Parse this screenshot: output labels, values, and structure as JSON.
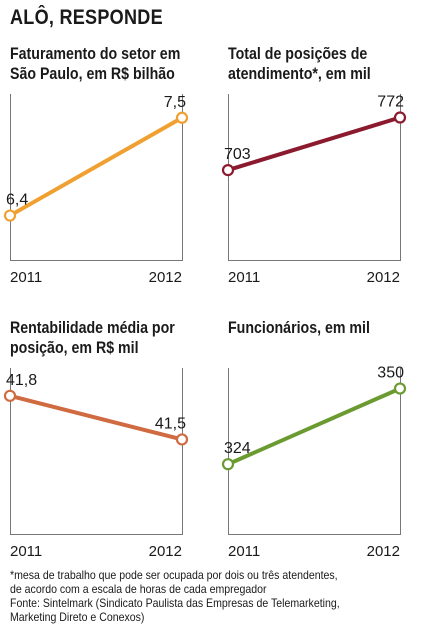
{
  "title": "ALÔ, RESPONDE",
  "chart_data": [
    {
      "type": "line",
      "title": "Faturamento do setor em\nSão Paulo, em R$ bilhão",
      "categories": [
        "2011",
        "2012"
      ],
      "values": [
        6.4,
        7.5
      ],
      "value_labels": [
        "6,4",
        "7,5"
      ],
      "ylim": [
        5.9,
        7.7
      ],
      "color": "#f0a030"
    },
    {
      "type": "line",
      "title": "Total de posições de\natendimento*, em mil",
      "categories": [
        "2011",
        "2012"
      ],
      "values": [
        703,
        772
      ],
      "value_labels": [
        "703",
        "772"
      ],
      "ylim": [
        585,
        795
      ],
      "color": "#8b1a2e"
    },
    {
      "type": "line",
      "title": "Rentabilidade média por\nposição, em R$ mil",
      "categories": [
        "2011",
        "2012"
      ],
      "values": [
        41.8,
        41.5
      ],
      "value_labels": [
        "41,8",
        "41,5"
      ],
      "ylim": [
        40.85,
        41.95
      ],
      "color": "#d06a40"
    },
    {
      "type": "line",
      "title": "Funcionários, em mil",
      "categories": [
        "2011",
        "2012"
      ],
      "values": [
        324,
        350
      ],
      "value_labels": [
        "324",
        "350"
      ],
      "ylim": [
        300,
        355
      ],
      "color": "#6a9a30"
    }
  ],
  "footnote": "*mesa de trabalho que pode ser ocupada por dois ou três atendentes,",
  "footnote2": "de acordo com a escala de horas de cada empregador",
  "source": "Fonte: Sintelmark (Sindicato Paulista das Empresas de Telemarketing,",
  "source2": "Marketing Direto e Conexos)"
}
